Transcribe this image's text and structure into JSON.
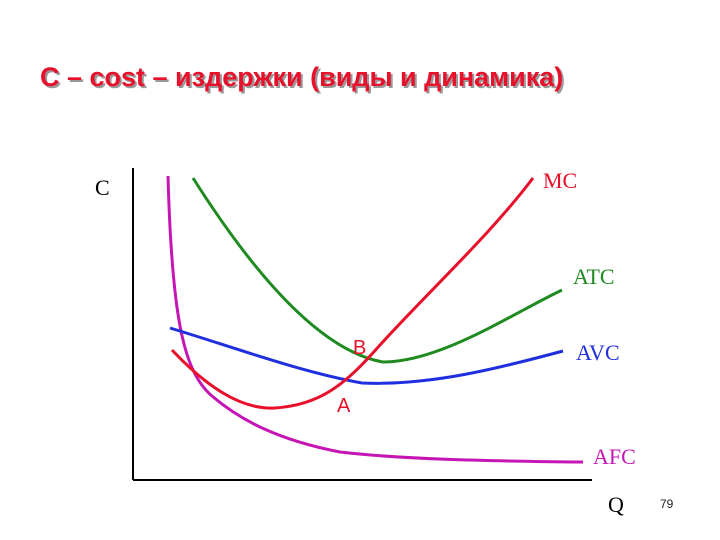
{
  "title": "С – cost – издержки (виды и динамика)",
  "slide_number": "79",
  "axes": {
    "y_label": "C",
    "x_label": "Q"
  },
  "curves": [
    {
      "id": "mc",
      "label": "MC",
      "color": "#e8102a"
    },
    {
      "id": "atc",
      "label": "ATC",
      "color": "#1f8a1f"
    },
    {
      "id": "avc",
      "label": "AVC",
      "color": "#1f2fe0"
    },
    {
      "id": "afc",
      "label": "AFC",
      "color": "#c516b5"
    }
  ],
  "points": [
    {
      "id": "b",
      "label": "B"
    },
    {
      "id": "a",
      "label": "A"
    }
  ]
}
